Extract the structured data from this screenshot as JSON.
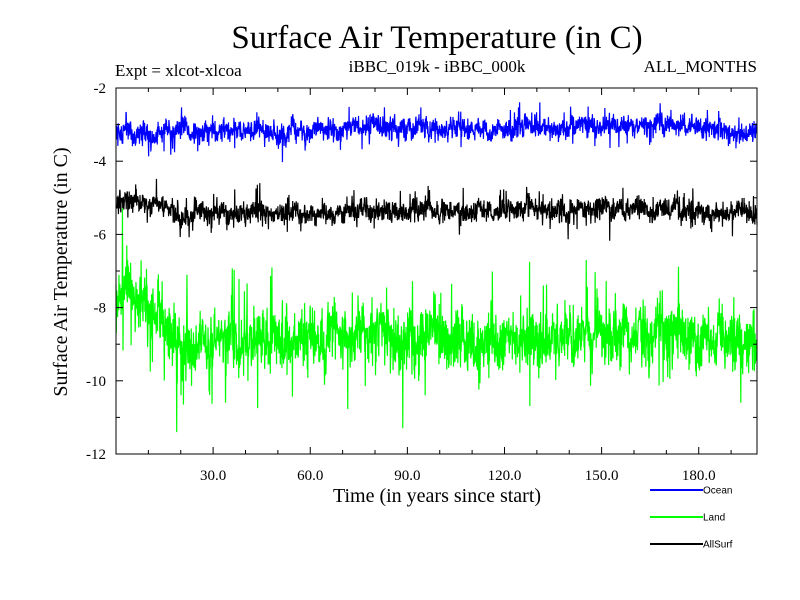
{
  "chart_data": {
    "type": "line",
    "title": "Surface Air Temperature (in C)",
    "subtitle_left": "Expt = xlcot-xlcoa",
    "subtitle_center": "iBBC_019k - iBBC_000k",
    "subtitle_right": "ALL_MONTHS",
    "xlabel": "Time (in years since start)",
    "ylabel": "Surface Air Temperature (in C)",
    "xlim": [
      0,
      198
    ],
    "ylim": [
      -12,
      -2
    ],
    "xticks": [
      30,
      60,
      90,
      120,
      150,
      180
    ],
    "xtick_labels": [
      "30.0",
      "60.0",
      "90.0",
      "120.0",
      "150.0",
      "180.0"
    ],
    "yticks": [
      -2,
      -4,
      -6,
      -8,
      -10,
      -12
    ],
    "ytick_labels": [
      "-2",
      "-4",
      "-6",
      "-8",
      "-10",
      "-12"
    ],
    "samples_per_year": 12,
    "series": [
      {
        "name": "Land",
        "color": "#00ff00",
        "mean": -8.9,
        "amplitude": 0.75,
        "spike": 1.35,
        "seed": 7,
        "anchors": [
          [
            0,
            -8.0
          ],
          [
            3,
            -7.2
          ],
          [
            8,
            -7.8
          ],
          [
            15,
            -8.6
          ],
          [
            22,
            -9.2
          ],
          [
            30,
            -8.9
          ],
          [
            60,
            -8.9
          ],
          [
            90,
            -8.9
          ],
          [
            120,
            -8.9
          ],
          [
            150,
            -8.8
          ],
          [
            180,
            -8.9
          ],
          [
            198,
            -8.9
          ]
        ]
      },
      {
        "name": "AllSurf",
        "color": "#000000",
        "mean": -5.4,
        "amplitude": 0.28,
        "spike": 0.5,
        "seed": 13,
        "anchors": [
          [
            0,
            -5.2
          ],
          [
            4,
            -5.0
          ],
          [
            10,
            -5.2
          ],
          [
            22,
            -5.5
          ],
          [
            40,
            -5.4
          ],
          [
            80,
            -5.4
          ],
          [
            120,
            -5.3
          ],
          [
            160,
            -5.3
          ],
          [
            198,
            -5.4
          ]
        ]
      },
      {
        "name": "Ocean",
        "color": "#0000ff",
        "mean": -3.2,
        "amplitude": 0.28,
        "spike": 0.45,
        "seed": 29,
        "anchors": [
          [
            0,
            -3.2
          ],
          [
            40,
            -3.2
          ],
          [
            80,
            -3.1
          ],
          [
            120,
            -3.1
          ],
          [
            160,
            -3.0
          ],
          [
            198,
            -3.2
          ]
        ]
      }
    ],
    "legend": [
      "Ocean",
      "Land",
      "AllSurf"
    ],
    "legend_position": "bottom-right"
  }
}
